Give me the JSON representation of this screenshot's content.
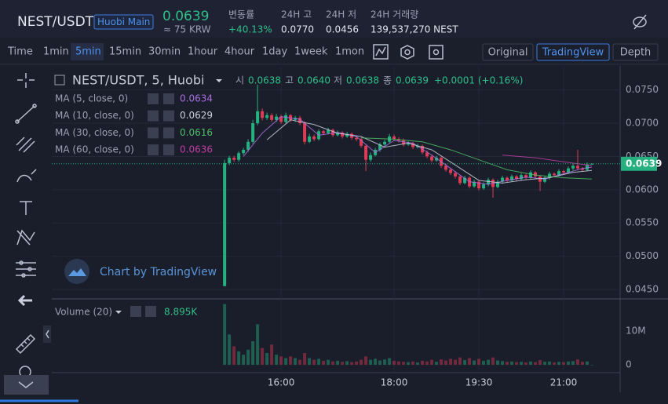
{
  "header": {
    "symbol": "NEST/USDT",
    "exchange": "Huobi Main",
    "price": "0.0639",
    "price_krw": "≈ 75 KRW",
    "change_label": "변동률",
    "change": "+40.13%",
    "high_label": "24H 고",
    "high": "0.0770",
    "low_label": "24H 저",
    "low": "0.0456",
    "volume_label": "24H 거래량",
    "volume": "139,537,270 NEST"
  },
  "toolbar": {
    "intervals": [
      "Time",
      "1min",
      "5min",
      "15min",
      "30min",
      "1hour",
      "4hour",
      "1day",
      "1week",
      "1mon"
    ],
    "views": [
      "Original",
      "TradingView",
      "Depth"
    ]
  },
  "chart_data": {
    "type": "candlestick",
    "legend_title": "NEST/USDT, 5, Huobi",
    "legend_ohlc": [
      {
        "label": "시",
        "value": "0.0638"
      },
      {
        "label": "고",
        "value": "0.0640"
      },
      {
        "label": "저",
        "value": "0.0638"
      },
      {
        "label": "종",
        "value": "0.0639"
      }
    ],
    "change_text": "+0.0001 (+0.16%)",
    "watermark": "Chart by TradingView",
    "up_color": "#26b07f",
    "down_color": "#dc3c55",
    "open": [
      0.0455,
      0.064,
      0.0648,
      0.0645,
      0.0655,
      0.066,
      0.0672,
      0.07,
      0.0718,
      0.0708,
      0.0712,
      0.0705,
      0.071,
      0.0702,
      0.0712,
      0.0705,
      0.0708,
      0.07,
      0.0672,
      0.068,
      0.0676,
      0.0688,
      0.0685,
      0.069,
      0.0682,
      0.0686,
      0.068,
      0.0684,
      0.0678,
      0.0676,
      0.0666,
      0.0645,
      0.0652,
      0.066,
      0.0668,
      0.0672,
      0.068,
      0.0676,
      0.0674,
      0.0668,
      0.067,
      0.0664,
      0.0666,
      0.0656,
      0.065,
      0.0644,
      0.0648,
      0.0636,
      0.063,
      0.0625,
      0.062,
      0.061,
      0.0618,
      0.0605,
      0.0612,
      0.0602,
      0.0608,
      0.0615,
      0.0604,
      0.0612,
      0.0618,
      0.0614,
      0.062,
      0.0616,
      0.0622,
      0.0618,
      0.0626,
      0.062,
      0.0612,
      0.0618,
      0.0624,
      0.0622,
      0.0628,
      0.0626,
      0.0632,
      0.0636,
      0.0632,
      0.063,
      0.0638
    ],
    "high": [
      0.0645,
      0.0651,
      0.0651,
      0.0658,
      0.0663,
      0.0676,
      0.0705,
      0.0758,
      0.0722,
      0.0716,
      0.0715,
      0.0714,
      0.0713,
      0.0716,
      0.0714,
      0.0711,
      0.0711,
      0.0703,
      0.0684,
      0.0683,
      0.0691,
      0.069,
      0.0693,
      0.0692,
      0.0689,
      0.0688,
      0.0687,
      0.0686,
      0.0681,
      0.0679,
      0.0668,
      0.0656,
      0.0663,
      0.0671,
      0.0675,
      0.0684,
      0.0683,
      0.0679,
      0.0677,
      0.0673,
      0.0672,
      0.0669,
      0.0668,
      0.0659,
      0.0653,
      0.0651,
      0.065,
      0.0639,
      0.0633,
      0.0628,
      0.0622,
      0.0621,
      0.062,
      0.0615,
      0.0614,
      0.0611,
      0.0618,
      0.0617,
      0.0615,
      0.0621,
      0.062,
      0.0623,
      0.0622,
      0.0625,
      0.0624,
      0.0629,
      0.0628,
      0.0622,
      0.0621,
      0.0627,
      0.0626,
      0.0631,
      0.063,
      0.0635,
      0.0639,
      0.066,
      0.0634,
      0.0641,
      0.064
    ],
    "low": [
      0.0455,
      0.0637,
      0.0642,
      0.0642,
      0.0652,
      0.0657,
      0.0669,
      0.0697,
      0.0704,
      0.0705,
      0.0702,
      0.0702,
      0.0699,
      0.07,
      0.0702,
      0.0702,
      0.0697,
      0.0668,
      0.067,
      0.0673,
      0.0674,
      0.0682,
      0.0683,
      0.0679,
      0.068,
      0.0677,
      0.0678,
      0.0675,
      0.0673,
      0.0663,
      0.0628,
      0.0642,
      0.065,
      0.0657,
      0.0665,
      0.067,
      0.0673,
      0.0671,
      0.0665,
      0.0666,
      0.0661,
      0.0662,
      0.0653,
      0.0647,
      0.0641,
      0.0642,
      0.0633,
      0.0627,
      0.0622,
      0.0617,
      0.0607,
      0.0608,
      0.0602,
      0.0603,
      0.0599,
      0.06,
      0.0605,
      0.0588,
      0.0602,
      0.0609,
      0.0611,
      0.0612,
      0.0613,
      0.0614,
      0.0615,
      0.0616,
      0.0617,
      0.0598,
      0.061,
      0.0615,
      0.0619,
      0.062,
      0.0623,
      0.0624,
      0.0629,
      0.0629,
      0.0627,
      0.0628,
      0.0638
    ],
    "close": [
      0.064,
      0.0648,
      0.0645,
      0.0655,
      0.066,
      0.0672,
      0.07,
      0.0718,
      0.0708,
      0.0712,
      0.0705,
      0.071,
      0.0702,
      0.0712,
      0.0705,
      0.0708,
      0.07,
      0.0672,
      0.068,
      0.0676,
      0.0688,
      0.0685,
      0.069,
      0.0682,
      0.0686,
      0.068,
      0.0684,
      0.0678,
      0.0676,
      0.0666,
      0.0645,
      0.0652,
      0.066,
      0.0668,
      0.0672,
      0.068,
      0.0676,
      0.0674,
      0.0668,
      0.067,
      0.0664,
      0.0666,
      0.0656,
      0.065,
      0.0644,
      0.0648,
      0.0636,
      0.063,
      0.0625,
      0.062,
      0.061,
      0.0618,
      0.0605,
      0.0612,
      0.0602,
      0.0608,
      0.0615,
      0.0604,
      0.0612,
      0.0618,
      0.0614,
      0.062,
      0.0616,
      0.0622,
      0.0618,
      0.0626,
      0.062,
      0.0612,
      0.0618,
      0.0624,
      0.0622,
      0.0628,
      0.0626,
      0.0632,
      0.0636,
      0.0632,
      0.063,
      0.0638,
      0.0639
    ],
    "ma": [
      {
        "name": "MA (5, close, 0)",
        "color": "#a970e0",
        "x": [
          4,
          8,
          12,
          16,
          20,
          24,
          28,
          32,
          36,
          40,
          44,
          48,
          52,
          56,
          60,
          64,
          68,
          72,
          76,
          78
        ],
        "values": [
          0.065,
          0.0685,
          0.071,
          0.0706,
          0.0682,
          0.0686,
          0.068,
          0.0656,
          0.0674,
          0.067,
          0.0652,
          0.0632,
          0.0612,
          0.0608,
          0.0614,
          0.0619,
          0.0616,
          0.0624,
          0.0632,
          0.0634
        ]
      },
      {
        "name": "MA (10, close, 0)",
        "color": "#c9cfdd",
        "x": [
          9,
          14,
          19,
          24,
          29,
          34,
          39,
          44,
          49,
          54,
          59,
          64,
          69,
          74,
          78
        ],
        "values": [
          0.0675,
          0.0705,
          0.0698,
          0.0685,
          0.068,
          0.0664,
          0.067,
          0.066,
          0.0637,
          0.0614,
          0.061,
          0.0615,
          0.0618,
          0.0626,
          0.0629
        ]
      },
      {
        "name": "MA (30, close, 0)",
        "color": "#4cbf66",
        "x": [
          29,
          36,
          42,
          48,
          54,
          60,
          66,
          72,
          78
        ],
        "values": [
          0.0678,
          0.0676,
          0.0672,
          0.066,
          0.0645,
          0.063,
          0.0622,
          0.0618,
          0.0616
        ]
      },
      {
        "name": "MA (60, close, 0)",
        "color": "#c03ea6",
        "x": [
          59,
          66,
          72,
          78
        ],
        "values": [
          0.0652,
          0.0648,
          0.0642,
          0.0636
        ]
      }
    ],
    "xlim": [
      -36.7,
      84
    ],
    "xticks": [
      {
        "value": 12,
        "label": "16:00"
      },
      {
        "value": 36,
        "label": "18:00"
      },
      {
        "value": 54,
        "label": "19:30"
      },
      {
        "value": 72,
        "label": "21:00"
      }
    ],
    "ylim": [
      0.0437,
      0.0785
    ],
    "yticks": [
      {
        "value": 0.075,
        "label": "0.0750"
      },
      {
        "value": 0.07,
        "label": "0.0700"
      },
      {
        "value": 0.065,
        "label": "0.0650"
      },
      {
        "value": 0.06,
        "label": "0.0600"
      },
      {
        "value": 0.055,
        "label": "0.0550"
      },
      {
        "value": 0.05,
        "label": "0.0500"
      },
      {
        "value": 0.045,
        "label": "0.0450"
      }
    ],
    "grid": true,
    "volume": {
      "title": "Volume (20)",
      "value_text": "8.895K",
      "ylim": [
        -2300000,
        19300000
      ],
      "yticks": [
        0,
        {
          "value": 10000000,
          "label": "10M"
        }
      ],
      "values": [
        18000000,
        9000000,
        5500000,
        4000000,
        3000000,
        4500000,
        7000000,
        12000000,
        5000000,
        3500000,
        6000000,
        3000000,
        2500000,
        2000000,
        2500000,
        2000000,
        1500000,
        3500000,
        2000000,
        1500000,
        1800000,
        1200000,
        1500000,
        1000000,
        1200000,
        900000,
        1100000,
        800000,
        1000000,
        1500000,
        2500000,
        1500000,
        1800000,
        1300000,
        1600000,
        2000000,
        1200000,
        1000000,
        900000,
        800000,
        1000000,
        700000,
        1200000,
        1000000,
        1500000,
        900000,
        1600000,
        1300000,
        1800000,
        1500000,
        2200000,
        1400000,
        2000000,
        1300000,
        1800000,
        1200000,
        1500000,
        2200000,
        1300000,
        1100000,
        900000,
        1000000,
        800000,
        900000,
        700000,
        1000000,
        800000,
        1400000,
        900000,
        1000000,
        700000,
        900000,
        800000,
        1000000,
        1100000,
        1600000,
        900000,
        1000000,
        8895
      ]
    }
  }
}
